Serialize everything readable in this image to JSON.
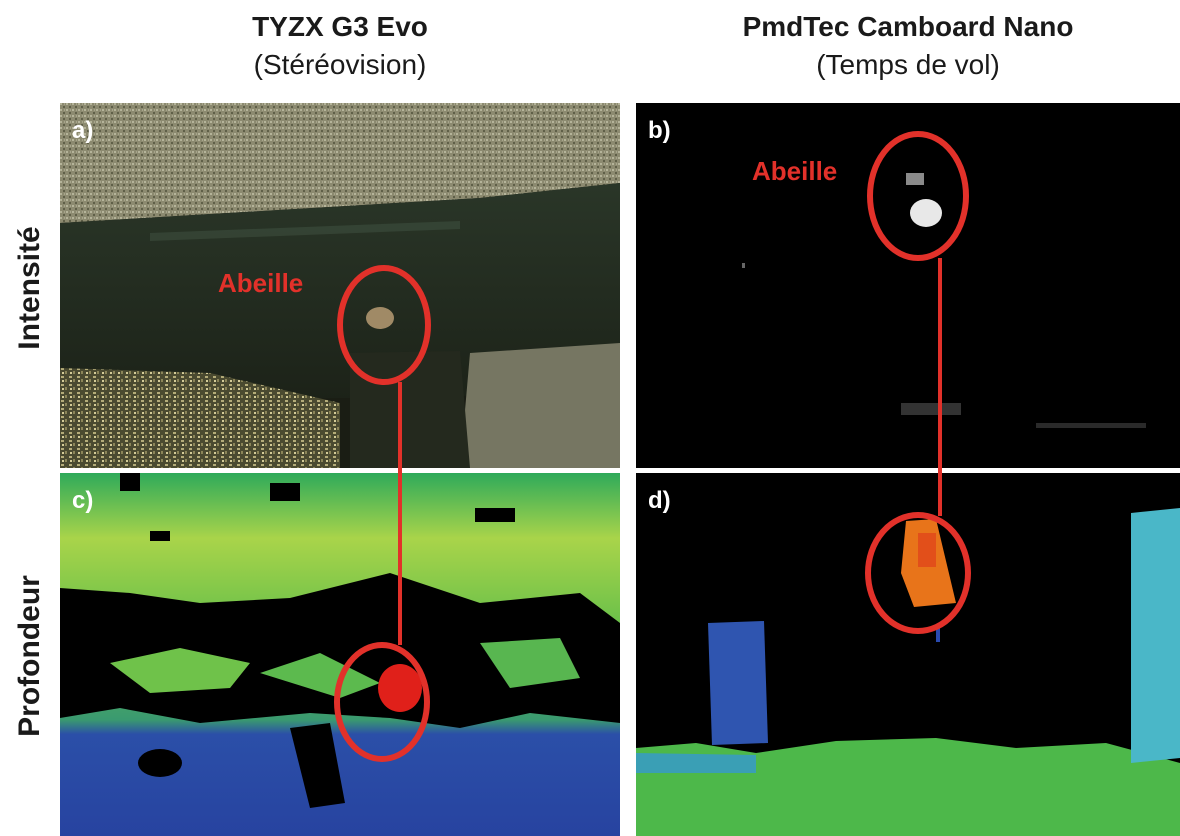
{
  "columns": [
    {
      "title": "TYZX G3 Evo",
      "subtitle": "(Stéréovision)"
    },
    {
      "title": "PmdTec Camboard Nano",
      "subtitle": "(Temps de vol)"
    }
  ],
  "rows": [
    "Intensité",
    "Profondeur"
  ],
  "panels": {
    "a": "a)",
    "b": "b)",
    "c": "c)",
    "d": "d)"
  },
  "annotations": {
    "bee_left": "Abeille",
    "bee_right": "Abeille"
  },
  "colors": {
    "annotation": "#e2312a",
    "separator": "#ffffff"
  }
}
